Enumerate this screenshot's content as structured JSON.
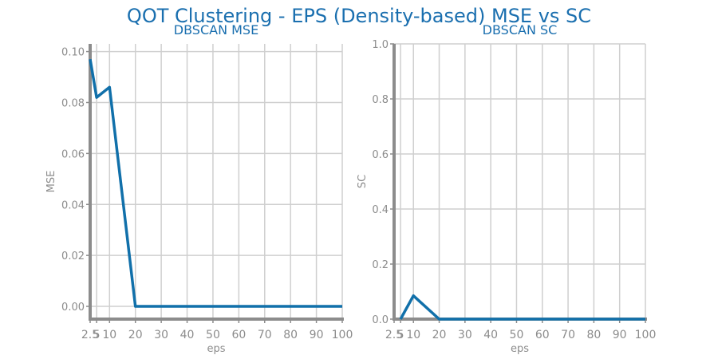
{
  "title": "QOT Clustering - EPS (Density-based) MSE vs SC",
  "colors": {
    "title": "#1a6faf",
    "series": "#1170aa",
    "grid": "#cfcfcf",
    "axis": "#8c8c8c"
  },
  "chart_data": [
    {
      "type": "line",
      "title": "DBSCAN MSE",
      "xlabel": "eps",
      "ylabel": "MSE",
      "x": [
        2.5,
        5,
        10,
        20,
        30,
        40,
        50,
        60,
        70,
        80,
        90,
        100
      ],
      "y": [
        0.097,
        0.082,
        0.086,
        0.0,
        0.0,
        0.0,
        0.0,
        0.0,
        0.0,
        0.0,
        0.0,
        0.0
      ],
      "xticks": [
        "2.5",
        "5",
        "10",
        "20",
        "30",
        "40",
        "50",
        "60",
        "70",
        "80",
        "90",
        "100"
      ],
      "yticks": [
        "0.00",
        "0.02",
        "0.04",
        "0.06",
        "0.08",
        "0.10"
      ],
      "xlim": [
        2.5,
        100
      ],
      "ylim": [
        -0.005,
        0.103
      ],
      "grid": true
    },
    {
      "type": "line",
      "title": "DBSCAN SC",
      "xlabel": "eps",
      "ylabel": "SC",
      "x": [
        2.5,
        5,
        10,
        20,
        30,
        40,
        50,
        60,
        70,
        80,
        90,
        100
      ],
      "y": [
        null,
        0.0,
        0.085,
        0.0,
        0.0,
        0.0,
        0.0,
        0.0,
        0.0,
        0.0,
        0.0,
        0.0
      ],
      "xticks": [
        "2.5",
        "5",
        "10",
        "20",
        "30",
        "40",
        "50",
        "60",
        "70",
        "80",
        "90",
        "100"
      ],
      "yticks": [
        "0.0",
        "0.2",
        "0.4",
        "0.6",
        "0.8",
        "1.0"
      ],
      "xlim": [
        2.5,
        100
      ],
      "ylim": [
        0,
        1.0
      ],
      "grid": true
    }
  ]
}
